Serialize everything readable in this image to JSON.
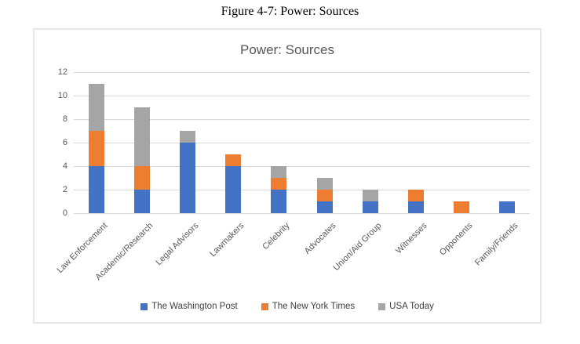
{
  "figure": {
    "caption": "Figure 4-7: Power: Sources"
  },
  "chart_data": {
    "type": "bar",
    "stacked": true,
    "title": "Power: Sources",
    "xlabel": "",
    "ylabel": "",
    "ylim": [
      0,
      12
    ],
    "y_ticks": [
      0,
      2,
      4,
      6,
      8,
      10,
      12
    ],
    "grid": true,
    "legend_position": "bottom",
    "categories": [
      "Law Enforcement",
      "Academic/Research",
      "Legal Advisors",
      "Lawmakers",
      "Celebrity",
      "Advocates",
      "Union/Aid Group",
      "Witnesses",
      "Opponents",
      "Family/Friends"
    ],
    "series": [
      {
        "name": "The Washington Post",
        "color": "#4472c4",
        "values": [
          4,
          2,
          6,
          4,
          2,
          1,
          1,
          1,
          0,
          1
        ]
      },
      {
        "name": "The New York Times",
        "color": "#ed7d31",
        "values": [
          3,
          2,
          0,
          1,
          1,
          1,
          0,
          1,
          1,
          0
        ]
      },
      {
        "name": "USA Today",
        "color": "#a5a5a5",
        "values": [
          4,
          5,
          1,
          0,
          1,
          1,
          1,
          0,
          0,
          0
        ]
      }
    ],
    "totals": [
      11,
      9,
      7,
      5,
      4,
      3,
      2,
      2,
      1,
      1
    ]
  }
}
